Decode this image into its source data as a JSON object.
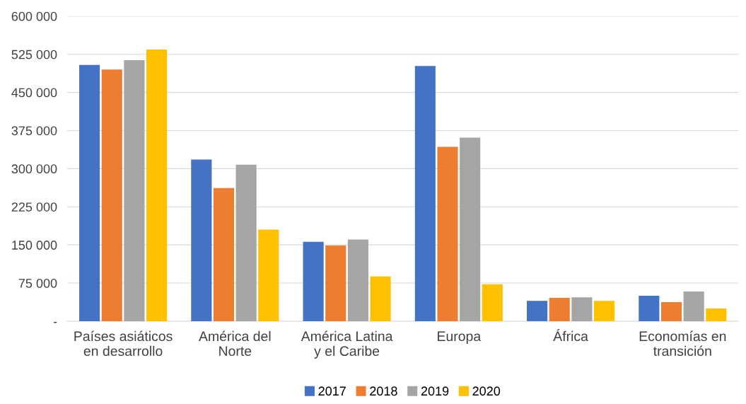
{
  "chart_data": {
    "type": "bar",
    "categories": [
      "Países asiáticos\nen desarrollo",
      "América del\nNorte",
      "América Latina\ny el Caribe",
      "Europa",
      "África",
      "Economías en\ntransición"
    ],
    "series": [
      {
        "name": "2017",
        "color": "#4472c4",
        "values": [
          504000,
          318000,
          156000,
          502000,
          40000,
          50000
        ]
      },
      {
        "name": "2018",
        "color": "#ed7d31",
        "values": [
          495000,
          262000,
          149000,
          343000,
          46000,
          37500
        ]
      },
      {
        "name": "2019",
        "color": "#a5a5a5",
        "values": [
          513500,
          308000,
          160500,
          361000,
          47000,
          58500
        ]
      },
      {
        "name": "2020",
        "color": "#ffc000",
        "values": [
          534500,
          180000,
          88000,
          72500,
          40000,
          25000
        ]
      }
    ],
    "ylim": [
      0,
      600000
    ],
    "yticks": [
      {
        "value": 0,
        "label": "-"
      },
      {
        "value": 75000,
        "label": "75 000"
      },
      {
        "value": 150000,
        "label": "150 000"
      },
      {
        "value": 225000,
        "label": "225 000"
      },
      {
        "value": 300000,
        "label": "300 000"
      },
      {
        "value": 375000,
        "label": "375 000"
      },
      {
        "value": 450000,
        "label": "450 000"
      },
      {
        "value": 525000,
        "label": "525 000"
      },
      {
        "value": 600000,
        "label": "600 000"
      }
    ],
    "grid": "y",
    "legend": "bottom"
  }
}
